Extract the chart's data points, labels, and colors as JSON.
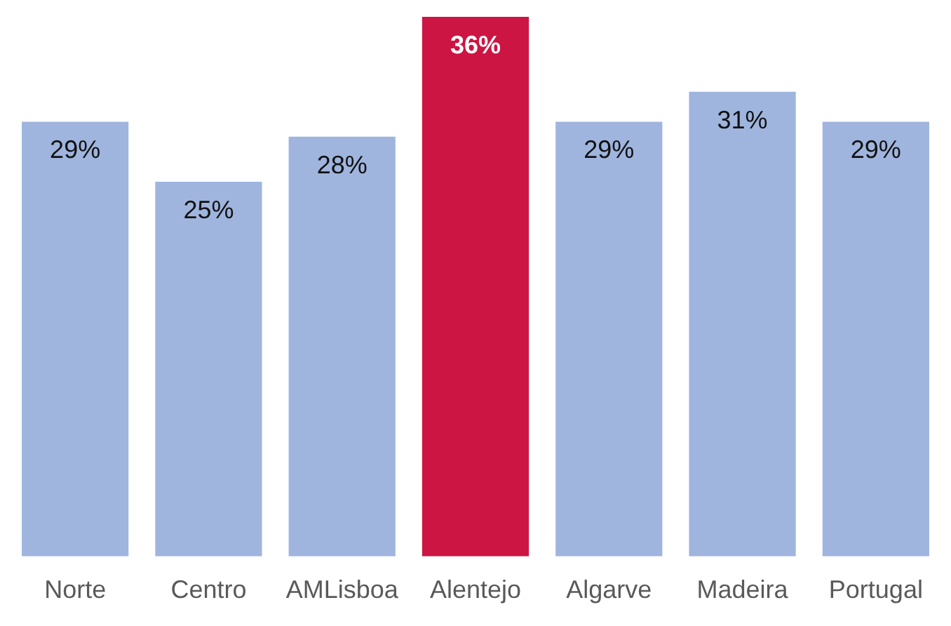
{
  "chart_data": {
    "type": "bar",
    "categories": [
      "Norte",
      "Centro",
      "AMLisboa",
      "Alentejo",
      "Algarve",
      "Madeira",
      "Portugal"
    ],
    "values": [
      29,
      25,
      28,
      36,
      29,
      31,
      29
    ],
    "colors": [
      "#9fb5de",
      "#9fb5de",
      "#9fb5de",
      "#cc1543",
      "#9fb5de",
      "#9fb5de",
      "#9fb5de"
    ],
    "value_labels": [
      "29%",
      "25%",
      "28%",
      "36%",
      "29%",
      "31%",
      "29%"
    ],
    "grid": false,
    "legend": false
  }
}
